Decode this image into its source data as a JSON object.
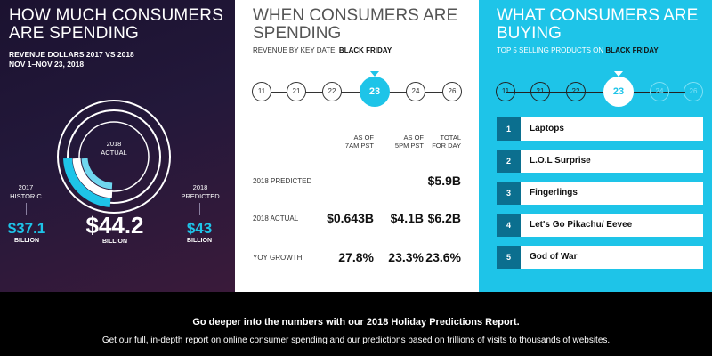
{
  "left": {
    "title": "HOW MUCH CONSUMERS ARE SPENDING",
    "subtitle_line1": "REVENUE DOLLARS 2017 VS 2018",
    "subtitle_line2": "NOV 1–NOV 23, 2018",
    "actual_label_year": "2018",
    "actual_label_text": "ACTUAL",
    "actual_value": "$44.2",
    "actual_unit": "BILLION",
    "historic_year": "2017",
    "historic_text": "HISTORIC",
    "historic_value": "$37.1",
    "historic_unit": "BILLION",
    "predicted_year": "2018",
    "predicted_text": "PREDICTED",
    "predicted_value": "$43",
    "predicted_unit": "BILLION",
    "colors": {
      "accent": "#1ec4e8",
      "bg": "#1b1230"
    }
  },
  "middle": {
    "title": "WHEN CONSUMERS ARE SPENDING",
    "subtitle_prefix": "REVENUE BY KEY DATE: ",
    "subtitle_bold": "BLACK FRIDAY",
    "timeline": [
      "11",
      "21",
      "22",
      "23",
      "24",
      "26"
    ],
    "active_date": "23",
    "table": {
      "col1_l1": "AS OF",
      "col1_l2": "7AM PST",
      "col2_l1": "AS OF",
      "col2_l2": "5PM PST",
      "col3_l1": "TOTAL",
      "col3_l2": "FOR DAY",
      "rows": [
        {
          "label": "2018 PREDICTED",
          "c1": "",
          "c2": "",
          "c3": "$5.9B"
        },
        {
          "label": "2018 ACTUAL",
          "c1": "$0.643B",
          "c2": "$4.1B",
          "c3": "$6.2B"
        },
        {
          "label": "YOY GROWTH",
          "c1": "27.8%",
          "c2": "23.3%",
          "c3": "23.6%"
        }
      ]
    }
  },
  "right": {
    "title": "WHAT CONSUMERS ARE BUYING",
    "subtitle_prefix": "TOP 5 SELLING PRODUCTS ON ",
    "subtitle_bold": "BLACK FRIDAY",
    "timeline": [
      "11",
      "21",
      "22",
      "23",
      "24",
      "26"
    ],
    "active_date": "23",
    "products": [
      {
        "rank": "1",
        "name": "Laptops"
      },
      {
        "rank": "2",
        "name": "L.O.L Surprise"
      },
      {
        "rank": "3",
        "name": "Fingerlings"
      },
      {
        "rank": "4",
        "name": "Let's Go Pikachu/ Eevee"
      },
      {
        "rank": "5",
        "name": "God of War"
      }
    ]
  },
  "footer": {
    "headline": "Go deeper into the numbers with our 2018 Holiday Predictions Report.",
    "body": "Get our full, in-depth report on online consumer spending and our predictions based on trillions of visits to thousands of websites."
  }
}
